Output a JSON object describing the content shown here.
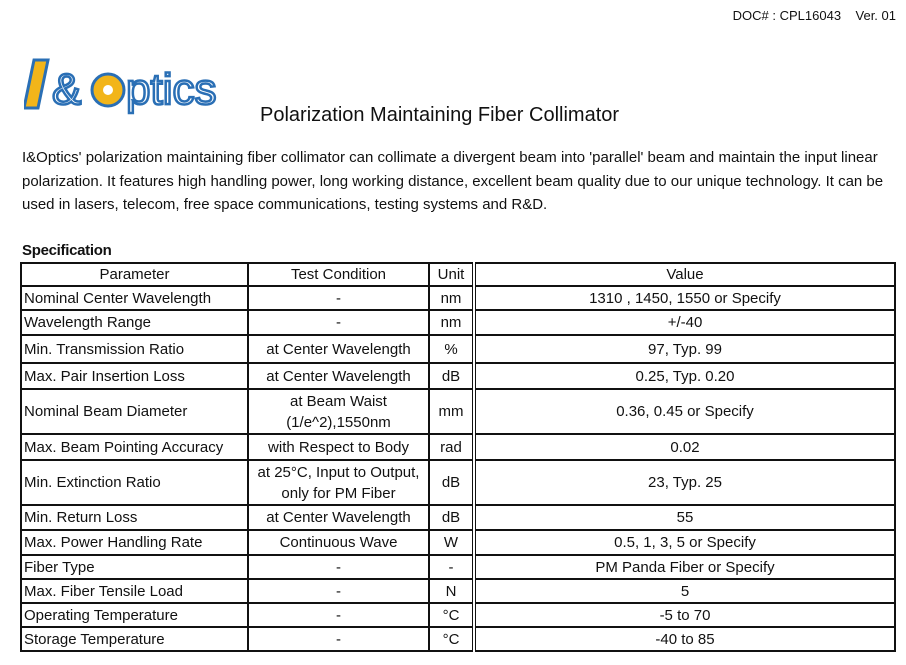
{
  "header": {
    "doc_number": "DOC# : CPL16043    Ver. 01"
  },
  "logo": {
    "text": "I&Optics",
    "colors": {
      "blue": "#2a6fb5",
      "yellow": "#f2b51a"
    }
  },
  "title": "Polarization Maintaining Fiber Collimator",
  "intro": "I&Optics' polarization maintaining fiber collimator can collimate a divergent beam into 'parallel' beam and maintain the input linear polarization. It features high handling power, long working distance, excellent beam quality due to our unique technology. It can be used in lasers, telecom, free space communications, testing systems and R&D.",
  "spec": {
    "heading": "Specification",
    "columns": [
      "Parameter",
      "Test Condition",
      "Unit",
      "Value"
    ],
    "rows": [
      [
        "Nominal Center Wavelength",
        "-",
        "nm",
        "1310 , 1450, 1550 or Specify"
      ],
      [
        "Wavelength Range",
        "-",
        "nm",
        "+/-40"
      ],
      [
        "Min. Transmission Ratio",
        "at Center Wavelength",
        "%",
        "97, Typ. 99"
      ],
      [
        "Max. Pair Insertion Loss",
        "at Center Wavelength",
        "dB",
        "0.25, Typ. 0.20"
      ],
      [
        "Nominal Beam Diameter",
        "at Beam Waist (1/e^2),1550nm",
        "mm",
        "0.36, 0.45 or Specify"
      ],
      [
        "Max. Beam Pointing Accuracy",
        "with Respect to Body",
        "rad",
        "0.02"
      ],
      [
        "Min. Extinction Ratio",
        "at 25°C, Input to Output, only for PM Fiber",
        "dB",
        "23, Typ. 25"
      ],
      [
        "Min. Return Loss",
        "at Center Wavelength",
        "dB",
        "55"
      ],
      [
        "Max. Power Handling Rate",
        "Continuous Wave",
        "W",
        "0.5, 1, 3, 5 or Specify"
      ],
      [
        "Fiber Type",
        "-",
        "-",
        "PM Panda Fiber or Specify"
      ],
      [
        "Max. Fiber Tensile Load",
        "-",
        "N",
        "5"
      ],
      [
        "Operating Temperature",
        "-",
        "°C",
        "-5 to 70"
      ],
      [
        "Storage Temperature",
        "-",
        "°C",
        "-40 to 85"
      ]
    ]
  }
}
